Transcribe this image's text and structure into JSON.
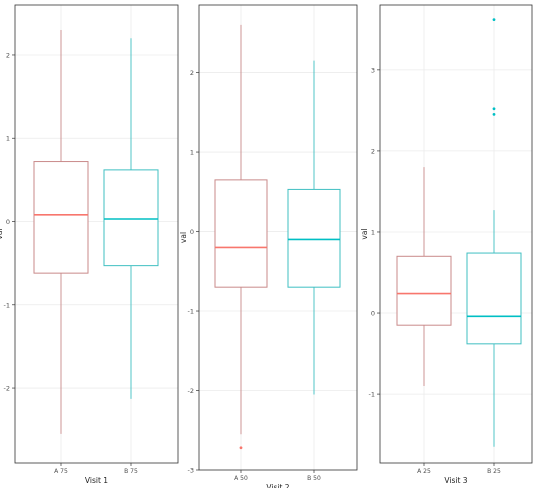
{
  "chart_data": [
    {
      "type": "box",
      "xlabel": "Visit 1",
      "ylabel": "val",
      "ylim": [
        -2.9,
        2.6
      ],
      "yticks": [
        -2,
        -1,
        0,
        1,
        2
      ],
      "categories": [
        "A 75",
        "B 75"
      ],
      "boxes": [
        {
          "category": "A 75",
          "color": "#F8766D",
          "whisker_low": -2.55,
          "q1": -0.62,
          "median": 0.08,
          "q3": 0.72,
          "whisker_high": 2.3,
          "outliers": []
        },
        {
          "category": "B 75",
          "color": "#00BFC4",
          "whisker_low": -2.13,
          "q1": -0.53,
          "median": 0.03,
          "q3": 0.62,
          "whisker_high": 2.2,
          "outliers": []
        }
      ]
    },
    {
      "type": "box",
      "xlabel": "Visit 2",
      "ylabel": "val",
      "ylim": [
        -3.0,
        2.85
      ],
      "yticks": [
        -3,
        -2,
        -1,
        0,
        1,
        2
      ],
      "categories": [
        "A 50",
        "B 50"
      ],
      "boxes": [
        {
          "category": "A 50",
          "color": "#F8766D",
          "whisker_low": -2.55,
          "q1": -0.7,
          "median": -0.2,
          "q3": 0.65,
          "whisker_high": 2.6,
          "outliers": [
            -2.72
          ]
        },
        {
          "category": "B 50",
          "color": "#00BFC4",
          "whisker_low": -2.05,
          "q1": -0.7,
          "median": -0.1,
          "q3": 0.53,
          "whisker_high": 2.15,
          "outliers": []
        }
      ]
    },
    {
      "type": "box",
      "xlabel": "Visit 3",
      "ylabel": "val",
      "ylim": [
        -1.85,
        3.8
      ],
      "yticks": [
        -1,
        0,
        1,
        2,
        3
      ],
      "categories": [
        "A 25",
        "B 25"
      ],
      "boxes": [
        {
          "category": "A 25",
          "color": "#F8766D",
          "whisker_low": -0.9,
          "q1": -0.15,
          "median": 0.24,
          "q3": 0.7,
          "whisker_high": 1.8,
          "outliers": []
        },
        {
          "category": "B 25",
          "color": "#00BFC4",
          "whisker_low": -1.65,
          "q1": -0.38,
          "median": -0.04,
          "q3": 0.74,
          "whisker_high": 1.27,
          "outliers": [
            2.45,
            2.52,
            3.62
          ]
        }
      ]
    }
  ]
}
